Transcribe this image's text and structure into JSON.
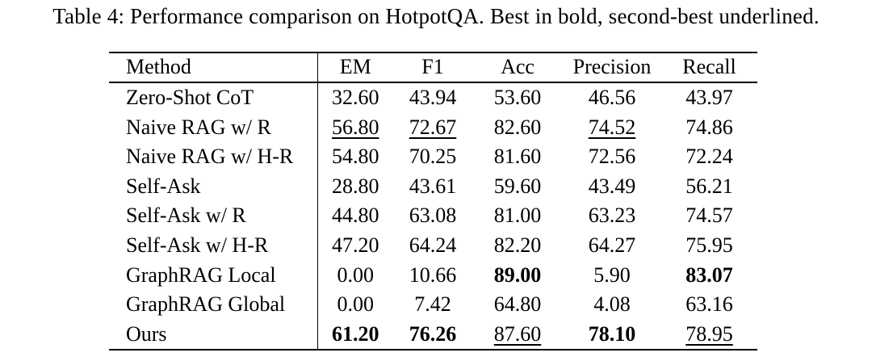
{
  "caption": {
    "text": "Table 4: Performance comparison on HotpotQA. Best in bold, second-best underlined."
  },
  "colors": {
    "text": "#000000",
    "background": "#ffffff",
    "rule": "#000000"
  },
  "table": {
    "columns": [
      "Method",
      "EM",
      "F1",
      "Acc",
      "Precision",
      "Recall"
    ],
    "rows": [
      {
        "method": "Zero-Shot CoT",
        "cells": [
          {
            "value": "32.60",
            "style": "plain"
          },
          {
            "value": "43.94",
            "style": "plain"
          },
          {
            "value": "53.60",
            "style": "plain"
          },
          {
            "value": "46.56",
            "style": "plain"
          },
          {
            "value": "43.97",
            "style": "plain"
          }
        ]
      },
      {
        "method": "Naive RAG w/ R",
        "cells": [
          {
            "value": "56.80",
            "style": "underline"
          },
          {
            "value": "72.67",
            "style": "underline"
          },
          {
            "value": "82.60",
            "style": "plain"
          },
          {
            "value": "74.52",
            "style": "underline"
          },
          {
            "value": "74.86",
            "style": "plain"
          }
        ]
      },
      {
        "method": "Naive RAG w/ H-R",
        "cells": [
          {
            "value": "54.80",
            "style": "plain"
          },
          {
            "value": "70.25",
            "style": "plain"
          },
          {
            "value": "81.60",
            "style": "plain"
          },
          {
            "value": "72.56",
            "style": "plain"
          },
          {
            "value": "72.24",
            "style": "plain"
          }
        ]
      },
      {
        "method": "Self-Ask",
        "cells": [
          {
            "value": "28.80",
            "style": "plain"
          },
          {
            "value": "43.61",
            "style": "plain"
          },
          {
            "value": "59.60",
            "style": "plain"
          },
          {
            "value": "43.49",
            "style": "plain"
          },
          {
            "value": "56.21",
            "style": "plain"
          }
        ]
      },
      {
        "method": "Self-Ask w/ R",
        "cells": [
          {
            "value": "44.80",
            "style": "plain"
          },
          {
            "value": "63.08",
            "style": "plain"
          },
          {
            "value": "81.00",
            "style": "plain"
          },
          {
            "value": "63.23",
            "style": "plain"
          },
          {
            "value": "74.57",
            "style": "plain"
          }
        ]
      },
      {
        "method": "Self-Ask w/ H-R",
        "cells": [
          {
            "value": "47.20",
            "style": "plain"
          },
          {
            "value": "64.24",
            "style": "plain"
          },
          {
            "value": "82.20",
            "style": "plain"
          },
          {
            "value": "64.27",
            "style": "plain"
          },
          {
            "value": "75.95",
            "style": "plain"
          }
        ]
      },
      {
        "method": "GraphRAG Local",
        "cells": [
          {
            "value": "0.00",
            "style": "plain"
          },
          {
            "value": "10.66",
            "style": "plain"
          },
          {
            "value": "89.00",
            "style": "bold"
          },
          {
            "value": "5.90",
            "style": "plain"
          },
          {
            "value": "83.07",
            "style": "bold"
          }
        ]
      },
      {
        "method": "GraphRAG Global",
        "cells": [
          {
            "value": "0.00",
            "style": "plain"
          },
          {
            "value": "7.42",
            "style": "plain"
          },
          {
            "value": "64.80",
            "style": "plain"
          },
          {
            "value": "4.08",
            "style": "plain"
          },
          {
            "value": "63.16",
            "style": "plain"
          }
        ]
      },
      {
        "method": "Ours",
        "cells": [
          {
            "value": "61.20",
            "style": "bold"
          },
          {
            "value": "76.26",
            "style": "bold"
          },
          {
            "value": "87.60",
            "style": "underline"
          },
          {
            "value": "78.10",
            "style": "bold"
          },
          {
            "value": "78.95",
            "style": "underline"
          }
        ]
      }
    ]
  }
}
